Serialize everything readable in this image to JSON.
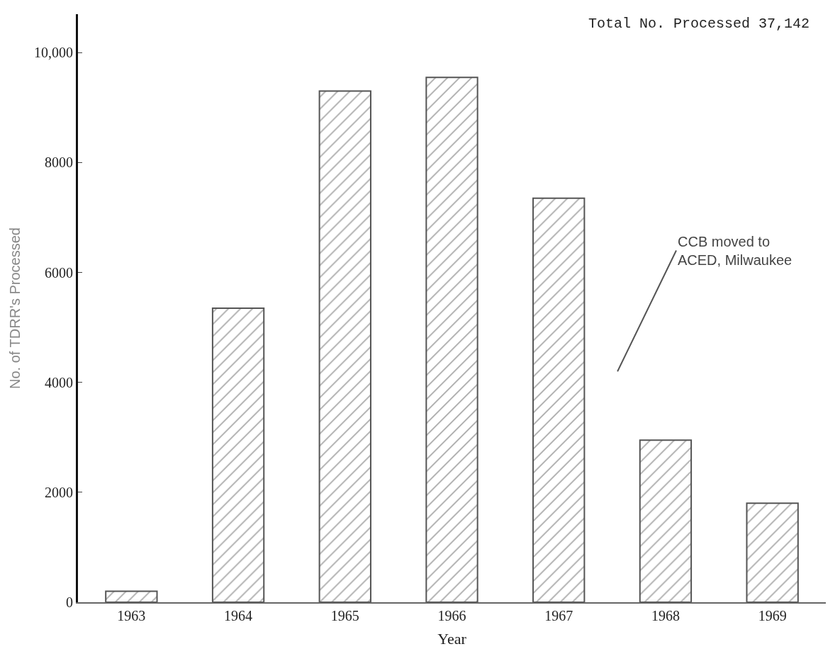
{
  "chart_data": {
    "type": "bar",
    "xlabel": "Year",
    "ylabel": "No. of TDRR's Processed",
    "categories": [
      "1963",
      "1964",
      "1965",
      "1966",
      "1967",
      "1968",
      "1969"
    ],
    "values": [
      200,
      5350,
      9300,
      9550,
      7350,
      2950,
      1800
    ],
    "color": "#555555",
    "ylim": [
      0,
      10700
    ],
    "yticks": [
      0,
      2000,
      4000,
      6000,
      8000,
      {
        "value": 10000,
        "label": "10,000"
      }
    ],
    "annotations": [
      "Total No. Processed 37,142",
      "CCB moved to\nACED, Milwaukee"
    ]
  }
}
